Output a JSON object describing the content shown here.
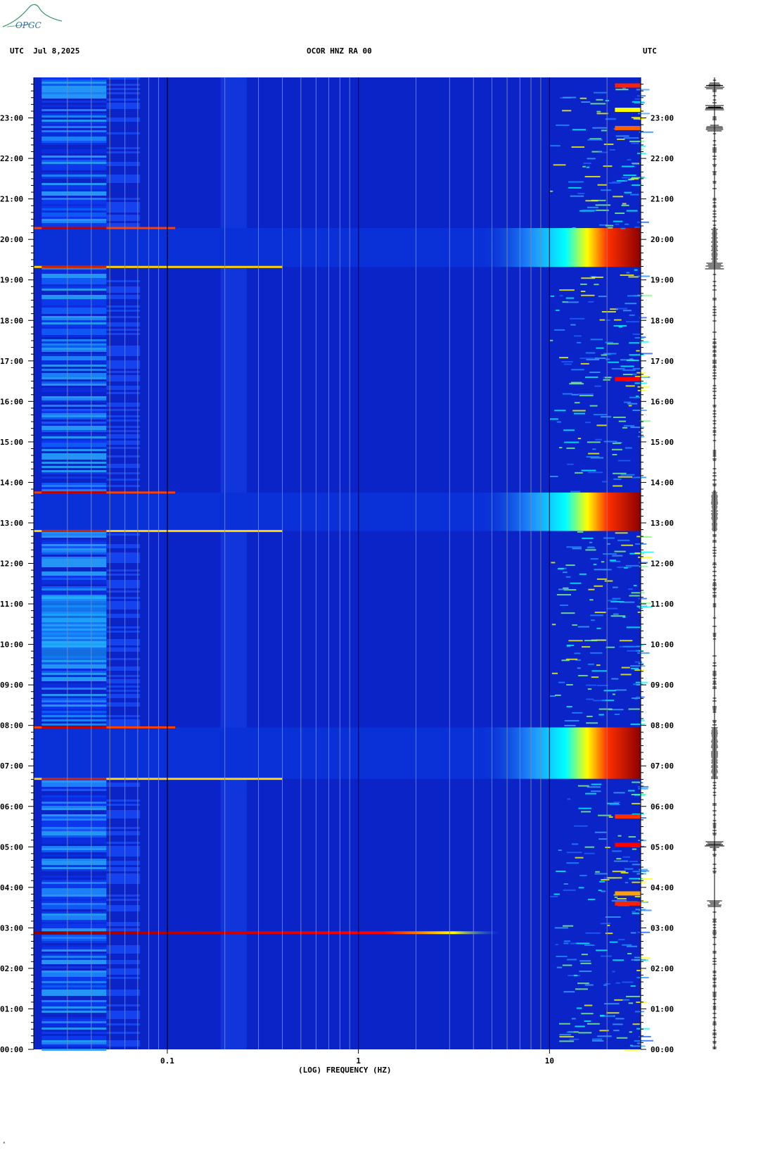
{
  "header": {
    "left": "UTC  Jul 8,2025",
    "center": "OCOR HNZ RA 00",
    "right": "UTC"
  },
  "logo": {
    "text": "OPGC"
  },
  "footer_mark": "ᴹ",
  "chart_data": {
    "type": "heatmap",
    "xlabel": "(LOG) FREQUENCY (HZ)",
    "x_scale": "log",
    "xlim": [
      0.02,
      30
    ],
    "x_tick_labels": [
      {
        "value": 0.1,
        "label": "0.1"
      },
      {
        "value": 1,
        "label": "1"
      },
      {
        "value": 10,
        "label": "10"
      }
    ],
    "ylabel": "UTC",
    "ylim_hours": [
      0,
      24
    ],
    "y_tick_labels": [
      "00:00",
      "01:00",
      "02:00",
      "03:00",
      "04:00",
      "05:00",
      "06:00",
      "07:00",
      "08:00",
      "09:00",
      "10:00",
      "11:00",
      "12:00",
      "13:00",
      "14:00",
      "15:00",
      "16:00",
      "17:00",
      "18:00",
      "19:00",
      "20:00",
      "21:00",
      "22:00",
      "23:00"
    ],
    "colormap": [
      "#00008b",
      "#0000ff",
      "#1e90ff",
      "#00ffff",
      "#7fff7f",
      "#ffff00",
      "#ff7f00",
      "#ff0000",
      "#8b0000"
    ],
    "background_color": "#0a24c8",
    "events": [
      {
        "name": "broadband noise",
        "start_h": 19.32,
        "end_h": 20.28,
        "from_hz": 8
      },
      {
        "name": "broadband noise",
        "start_h": 12.8,
        "end_h": 13.75,
        "from_hz": 8
      },
      {
        "name": "broadband noise",
        "start_h": 6.68,
        "end_h": 7.95,
        "from_hz": 8
      },
      {
        "name": "spike",
        "hour": 2.88,
        "to_hz": 1.2
      }
    ],
    "legend": "none"
  },
  "trace": {
    "description_events_h": [
      23.8,
      23.25,
      22.75,
      19.35,
      5.05,
      3.6
    ]
  }
}
